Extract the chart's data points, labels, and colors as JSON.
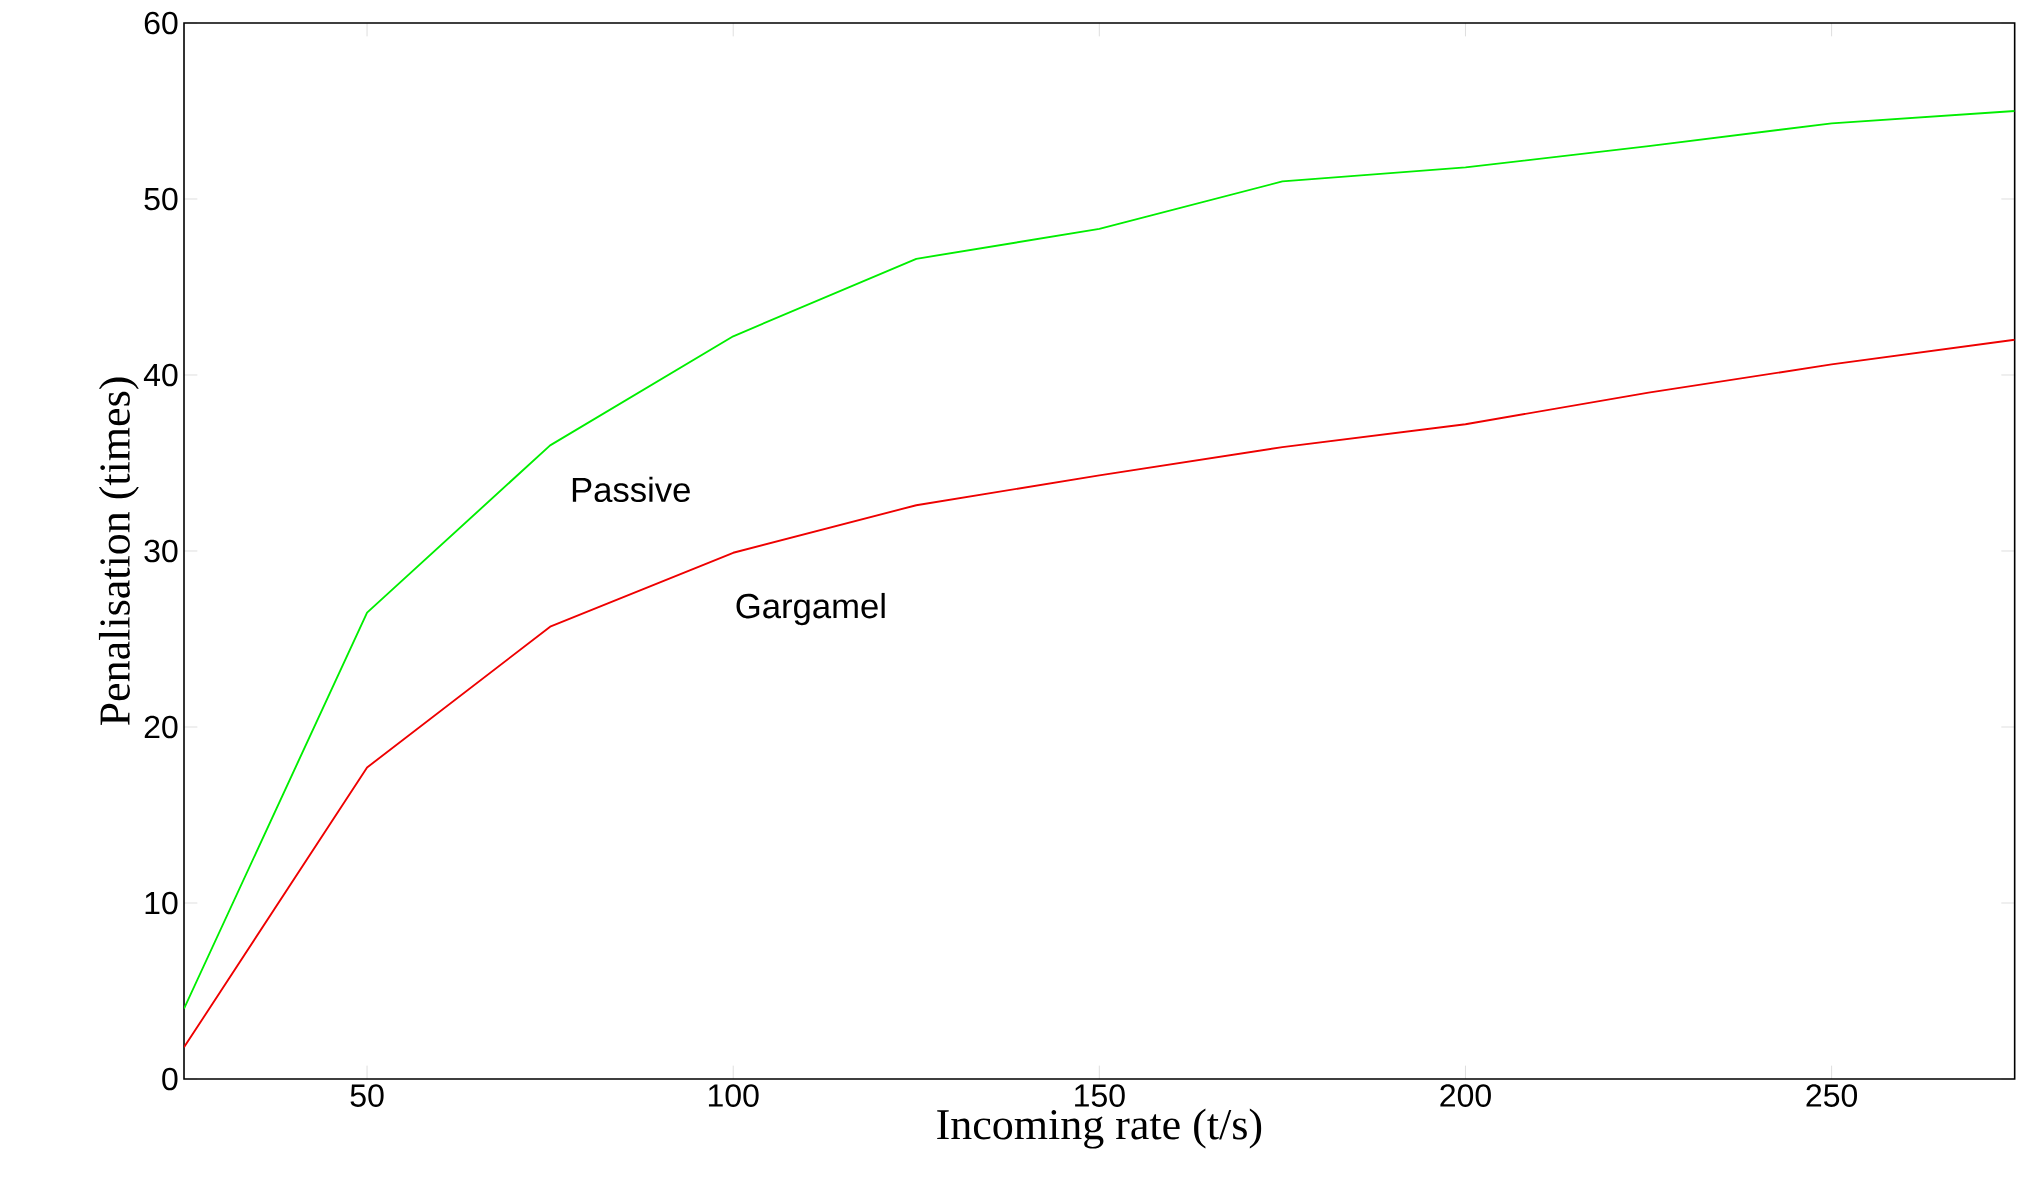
{
  "chart_data": {
    "type": "line",
    "xlabel": "Incoming rate (t/s)",
    "ylabel": "Penalisation (times)",
    "x": [
      25,
      50,
      75,
      100,
      125,
      150,
      175,
      200,
      225,
      250,
      275
    ],
    "series": [
      {
        "name": "Passive",
        "color": "#00ee00",
        "values": [
          4.0,
          26.5,
          36.0,
          42.2,
          46.6,
          48.3,
          51.0,
          51.8,
          53.0,
          54.3,
          55.0
        ]
      },
      {
        "name": "Gargamel",
        "color": "#ee0000",
        "values": [
          1.8,
          17.7,
          25.7,
          29.9,
          32.6,
          34.3,
          35.9,
          37.2,
          39.0,
          40.6,
          42.0
        ]
      }
    ],
    "xlim": [
      25,
      275
    ],
    "ylim": [
      0,
      60
    ],
    "xticks": [
      50,
      100,
      150,
      200,
      250
    ],
    "yticks": [
      0,
      10,
      20,
      30,
      40,
      50,
      60
    ],
    "grid": false,
    "legend": false,
    "marker": "none",
    "line_style": "solid"
  }
}
